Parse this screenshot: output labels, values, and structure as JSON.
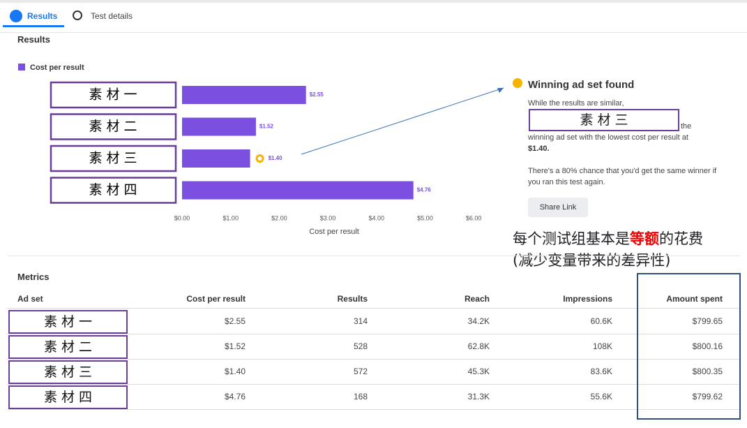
{
  "tabs": [
    "Results",
    "Test details"
  ],
  "results_title": "Results",
  "chart_data": {
    "type": "hbar",
    "series": [
      {
        "name": "Cost per result",
        "color": "#7b4fe0",
        "values": [
          2.55,
          1.52,
          1.4,
          4.76
        ],
        "value_labels": [
          "$2.55",
          "$1.52",
          "$1.40",
          "$4.76"
        ]
      }
    ],
    "categories": [
      "素 材 一",
      "素 材 二",
      "素 材 三",
      "素 材 四"
    ],
    "xlim": [
      0,
      6.4
    ],
    "xticks": [
      {
        "value": 0,
        "label": "$0.00"
      },
      {
        "value": 1,
        "label": "$1.00"
      },
      {
        "value": 2,
        "label": "$2.00"
      },
      {
        "value": 3,
        "label": "$3.00"
      },
      {
        "value": 4,
        "label": "$4.00"
      },
      {
        "value": 5,
        "label": "$5.00"
      },
      {
        "value": 6,
        "label": "$6.00"
      }
    ],
    "xlabel": "Cost per result"
  },
  "winner": {
    "title": "Winning ad set found",
    "line1": "While the results are similar,",
    "ad_set": "素 材 三",
    "line2": "the",
    "line3": "winning ad set with the lowest cost per result at",
    "amount": "$1.40.",
    "chance": "There's a 80% chance that you'd get the same winner if you ran this test again.",
    "button": "Share Link"
  },
  "annotation": {
    "before": "每个测试组基本是",
    "emphasis": "等额",
    "after": "的花费",
    "line2": "(减少变量带来的差异性)"
  },
  "metrics": {
    "title": "Metrics",
    "columns": [
      "Ad set",
      "Cost per result",
      "Results",
      "Reach",
      "Impressions",
      "Amount spent"
    ],
    "rows": [
      [
        "素 材 一",
        "$2.55",
        "314",
        "34.2K",
        "60.6K",
        "$799.65"
      ],
      [
        "素 材 二",
        "$1.52",
        "528",
        "62.8K",
        "108K",
        "$800.16"
      ],
      [
        "素 材 三",
        "$1.40",
        "572",
        "45.3K",
        "83.6K",
        "$800.35"
      ],
      [
        "素 材 四",
        "$4.76",
        "168",
        "31.3K",
        "55.6K",
        "$799.62"
      ]
    ]
  }
}
